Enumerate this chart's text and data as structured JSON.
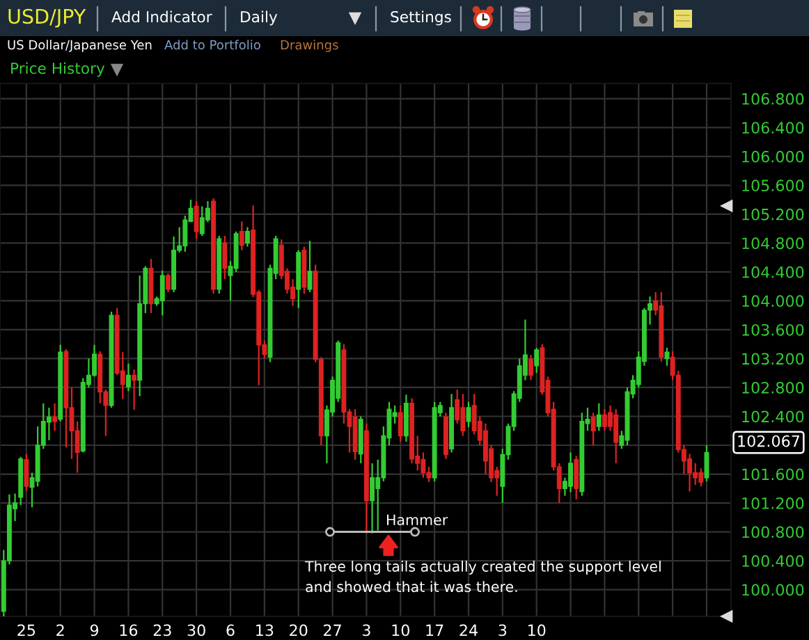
{
  "chart_data": {
    "type": "candlestick",
    "title": "USD/JPY",
    "subtitle": "US Dollar/Japanese Yen",
    "categories": [
      null,
      null,
      null,
      null,
      "25",
      null,
      null,
      null,
      null,
      null,
      "2",
      null,
      null,
      null,
      null,
      null,
      "9",
      null,
      null,
      null,
      null,
      null,
      "16",
      null,
      null,
      null,
      null,
      null,
      "23",
      null,
      null,
      null,
      null,
      null,
      "30",
      null,
      null,
      null,
      null,
      null,
      "6",
      null,
      null,
      null,
      null,
      null,
      "13",
      null,
      null,
      null,
      null,
      null,
      "20",
      null,
      null,
      null,
      null,
      null,
      "27",
      null,
      null,
      null,
      null,
      null,
      "3",
      null,
      null,
      null,
      null,
      null,
      "10",
      null,
      null,
      null,
      null,
      null,
      "17",
      null,
      null,
      null,
      null,
      null,
      "24",
      null,
      null,
      null,
      null,
      null,
      "3",
      null,
      null,
      null,
      null,
      null,
      "10",
      null,
      null,
      null,
      null,
      null,
      null,
      null,
      null,
      null,
      null,
      null,
      null,
      null,
      null,
      null,
      null,
      null,
      null,
      null,
      null,
      null,
      null,
      null,
      null,
      null,
      null,
      null,
      null,
      null,
      null
    ],
    "ohlc": [
      [
        99.7,
        100.55,
        99.6,
        100.4
      ],
      [
        100.4,
        101.32,
        100.35,
        101.17
      ],
      [
        101.12,
        101.33,
        100.95,
        101.2
      ],
      [
        101.28,
        101.84,
        101.17,
        101.81
      ],
      [
        101.8,
        101.88,
        101.37,
        101.43
      ],
      [
        101.42,
        101.62,
        101.14,
        101.55
      ],
      [
        101.5,
        102.26,
        101.43,
        102.0
      ],
      [
        102.0,
        102.58,
        101.95,
        102.33
      ],
      [
        102.32,
        102.52,
        102.07,
        102.39
      ],
      [
        102.39,
        102.58,
        102.2,
        102.33
      ],
      [
        102.36,
        103.39,
        102.33,
        103.29
      ],
      [
        103.3,
        103.33,
        101.97,
        102.52
      ],
      [
        102.52,
        102.8,
        101.81,
        102.2
      ],
      [
        102.2,
        102.33,
        101.62,
        101.9
      ],
      [
        101.92,
        102.93,
        101.9,
        102.87
      ],
      [
        102.84,
        103.2,
        102.8,
        102.97
      ],
      [
        102.97,
        103.39,
        102.95,
        103.26
      ],
      [
        103.26,
        103.3,
        102.58,
        102.74
      ],
      [
        102.74,
        102.77,
        102.13,
        102.55
      ],
      [
        102.55,
        103.85,
        102.52,
        103.8
      ],
      [
        103.8,
        103.9,
        102.97,
        103.0
      ],
      [
        103.03,
        103.29,
        102.64,
        102.84
      ],
      [
        102.81,
        103.13,
        102.75,
        102.97
      ],
      [
        102.97,
        103.05,
        102.49,
        102.9
      ],
      [
        102.9,
        104.35,
        102.68,
        103.96
      ],
      [
        103.96,
        104.48,
        103.83,
        104.45
      ],
      [
        104.45,
        104.58,
        103.83,
        103.96
      ],
      [
        103.96,
        104.06,
        103.93,
        104.03
      ],
      [
        104.0,
        104.42,
        103.8,
        104.35
      ],
      [
        104.35,
        104.38,
        104.12,
        104.16
      ],
      [
        104.16,
        104.89,
        104.12,
        104.7
      ],
      [
        104.7,
        105.02,
        104.67,
        104.76
      ],
      [
        104.76,
        105.18,
        104.68,
        105.12
      ],
      [
        105.1,
        105.4,
        105.09,
        105.28
      ],
      [
        105.31,
        105.38,
        104.86,
        104.96
      ],
      [
        104.93,
        105.31,
        104.9,
        105.15
      ],
      [
        105.12,
        105.38,
        105.09,
        105.28
      ],
      [
        105.38,
        105.42,
        104.1,
        104.16
      ],
      [
        104.16,
        104.9,
        104.1,
        104.86
      ],
      [
        104.8,
        104.9,
        104.3,
        104.45
      ],
      [
        104.35,
        104.55,
        104.0,
        104.48
      ],
      [
        104.45,
        104.96,
        104.4,
        104.93
      ],
      [
        104.96,
        105.1,
        104.7,
        104.77
      ],
      [
        104.8,
        105.02,
        104.75,
        104.96
      ],
      [
        104.98,
        105.32,
        104.05,
        104.09
      ],
      [
        104.12,
        104.15,
        102.83,
        103.39
      ],
      [
        103.39,
        103.45,
        103.2,
        103.26
      ],
      [
        103.22,
        104.5,
        103.15,
        104.45
      ],
      [
        104.38,
        104.9,
        104.3,
        104.86
      ],
      [
        104.77,
        104.85,
        104.3,
        104.35
      ],
      [
        104.41,
        104.45,
        104.1,
        104.16
      ],
      [
        104.19,
        104.3,
        103.93,
        104.03
      ],
      [
        104.16,
        104.7,
        103.9,
        104.67
      ],
      [
        104.7,
        104.75,
        104.1,
        104.19
      ],
      [
        104.16,
        104.83,
        104.12,
        104.41
      ],
      [
        104.41,
        104.5,
        103.15,
        103.19
      ],
      [
        103.19,
        103.22,
        102.0,
        102.13
      ],
      [
        102.13,
        102.55,
        101.75,
        102.49
      ],
      [
        102.46,
        102.95,
        102.4,
        102.9
      ],
      [
        102.65,
        103.45,
        102.6,
        103.42
      ],
      [
        103.32,
        103.4,
        102.3,
        102.46
      ],
      [
        102.46,
        102.5,
        101.9,
        102.26
      ],
      [
        102.39,
        102.5,
        101.8,
        101.91
      ],
      [
        101.88,
        102.4,
        101.75,
        102.36
      ],
      [
        102.2,
        102.3,
        100.78,
        101.23
      ],
      [
        101.23,
        101.75,
        100.78,
        101.55
      ],
      [
        101.4,
        101.8,
        100.82,
        101.55
      ],
      [
        101.55,
        102.26,
        101.5,
        102.13
      ],
      [
        102.1,
        102.6,
        102.0,
        102.5
      ],
      [
        102.4,
        102.55,
        102.3,
        102.45
      ],
      [
        102.45,
        102.55,
        102.05,
        102.13
      ],
      [
        102.13,
        102.7,
        102.05,
        102.58
      ],
      [
        102.58,
        102.65,
        101.75,
        101.81
      ],
      [
        101.85,
        102.13,
        101.65,
        101.75
      ],
      [
        101.8,
        101.9,
        101.55,
        101.62
      ],
      [
        101.62,
        101.7,
        101.49,
        101.55
      ],
      [
        101.55,
        102.6,
        101.5,
        102.52
      ],
      [
        102.45,
        102.6,
        102.4,
        102.55
      ],
      [
        102.39,
        102.45,
        101.81,
        101.87
      ],
      [
        101.95,
        102.71,
        101.9,
        102.52
      ],
      [
        102.63,
        102.77,
        102.3,
        102.35
      ],
      [
        102.52,
        102.71,
        102.13,
        102.2
      ],
      [
        102.33,
        102.6,
        102.25,
        102.52
      ],
      [
        102.55,
        102.71,
        102.15,
        102.2
      ],
      [
        102.33,
        102.4,
        102.0,
        102.07
      ],
      [
        102.2,
        102.3,
        101.6,
        101.78
      ],
      [
        101.95,
        102.0,
        101.49,
        101.55
      ],
      [
        101.65,
        101.7,
        101.3,
        101.55
      ],
      [
        101.43,
        101.95,
        101.2,
        101.87
      ],
      [
        101.87,
        102.3,
        101.8,
        102.26
      ],
      [
        102.26,
        102.75,
        102.2,
        102.71
      ],
      [
        102.65,
        103.2,
        102.6,
        103.1
      ],
      [
        102.97,
        103.74,
        102.9,
        103.25
      ],
      [
        103.19,
        103.25,
        102.9,
        102.97
      ],
      [
        103.1,
        103.35,
        103.0,
        103.32
      ],
      [
        103.35,
        103.4,
        102.7,
        102.74
      ],
      [
        102.9,
        102.95,
        102.4,
        102.45
      ],
      [
        102.5,
        102.6,
        101.65,
        101.7
      ],
      [
        101.7,
        101.75,
        101.2,
        101.4
      ],
      [
        101.4,
        101.55,
        101.3,
        101.5
      ],
      [
        101.43,
        101.9,
        101.35,
        101.75
      ],
      [
        101.8,
        101.85,
        101.25,
        101.4
      ],
      [
        101.36,
        102.45,
        101.3,
        102.33
      ],
      [
        102.3,
        102.52,
        102.2,
        102.36
      ],
      [
        102.39,
        102.45,
        102.0,
        102.2
      ],
      [
        102.26,
        102.58,
        102.2,
        102.42
      ],
      [
        102.42,
        102.5,
        102.2,
        102.26
      ],
      [
        102.45,
        102.55,
        102.2,
        102.26
      ],
      [
        102.42,
        102.5,
        101.75,
        102.04
      ],
      [
        102.0,
        102.2,
        101.95,
        102.13
      ],
      [
        102.07,
        102.8,
        102.0,
        102.74
      ],
      [
        102.71,
        102.97,
        102.65,
        102.9
      ],
      [
        102.84,
        103.3,
        102.8,
        103.22
      ],
      [
        103.16,
        103.9,
        103.1,
        103.87
      ],
      [
        103.87,
        104.06,
        103.67,
        103.96
      ],
      [
        104.0,
        104.12,
        103.8,
        103.87
      ],
      [
        103.93,
        104.12,
        103.16,
        103.22
      ],
      [
        103.2,
        103.35,
        103.1,
        103.29
      ],
      [
        103.22,
        103.3,
        102.9,
        102.97
      ],
      [
        102.97,
        103.03,
        101.9,
        101.94
      ],
      [
        101.94,
        102.0,
        101.6,
        101.78
      ],
      [
        101.81,
        101.88,
        101.36,
        101.62
      ],
      [
        101.62,
        101.75,
        101.45,
        101.55
      ],
      [
        101.62,
        101.68,
        101.43,
        101.49
      ],
      [
        101.55,
        102.0,
        101.5,
        101.9
      ]
    ],
    "colors": [
      "#33cc33",
      "#33cc33",
      "#33cc33",
      "#33cc33",
      "#dd2222",
      "#33cc33",
      "#33cc33",
      "#33cc33",
      "#33cc33",
      "#dd2222",
      "#33cc33",
      "#dd2222",
      "#dd2222",
      "#dd2222",
      "#33cc33",
      "#33cc33",
      "#33cc33",
      "#dd2222",
      "#dd2222",
      "#33cc33",
      "#dd2222",
      "#dd2222",
      "#33cc33",
      "#dd2222",
      "#33cc33",
      "#33cc33",
      "#dd2222",
      "#33cc33",
      "#33cc33",
      "#dd2222",
      "#33cc33",
      "#33cc33",
      "#33cc33",
      "#33cc33",
      "#dd2222",
      "#33cc33",
      "#33cc33",
      "#dd2222",
      "#33cc33",
      "#dd2222",
      "#33cc33",
      "#33cc33",
      "#dd2222",
      "#33cc33",
      "#dd2222",
      "#dd2222",
      "#dd2222",
      "#33cc33",
      "#33cc33",
      "#dd2222",
      "#dd2222",
      "#dd2222",
      "#33cc33",
      "#dd2222",
      "#33cc33",
      "#dd2222",
      "#dd2222",
      "#33cc33",
      "#33cc33",
      "#33cc33",
      "#dd2222",
      "#dd2222",
      "#dd2222",
      "#33cc33",
      "#dd2222",
      "#33cc33",
      "#33cc33",
      "#33cc33",
      "#33cc33",
      "#33cc33",
      "#dd2222",
      "#33cc33",
      "#dd2222",
      "#dd2222",
      "#dd2222",
      "#dd2222",
      "#33cc33",
      "#33cc33",
      "#dd2222",
      "#33cc33",
      "#dd2222",
      "#dd2222",
      "#33cc33",
      "#dd2222",
      "#dd2222",
      "#dd2222",
      "#dd2222",
      "#dd2222",
      "#33cc33",
      "#33cc33",
      "#33cc33",
      "#33cc33",
      "#33cc33",
      "#dd2222",
      "#33cc33",
      "#dd2222",
      "#dd2222",
      "#dd2222",
      "#dd2222",
      "#33cc33",
      "#33cc33",
      "#dd2222",
      "#33cc33",
      "#33cc33",
      "#dd2222",
      "#33cc33",
      "#dd2222",
      "#dd2222",
      "#dd2222",
      "#33cc33",
      "#33cc33",
      "#33cc33",
      "#33cc33",
      "#33cc33",
      "#33cc33",
      "#dd2222",
      "#dd2222",
      "#33cc33",
      "#dd2222",
      "#dd2222",
      "#dd2222",
      "#dd2222",
      "#dd2222",
      "#dd2222",
      "#33cc33"
    ],
    "ylim": [
      99.63,
      107.01
    ],
    "yticks": [
      {
        "value": 100.0,
        "label": "100.000"
      },
      {
        "value": 100.4,
        "label": "100.400"
      },
      {
        "value": 100.8,
        "label": "100.800"
      },
      {
        "value": 101.2,
        "label": "101.200"
      },
      {
        "value": 101.6,
        "label": "101.600"
      },
      {
        "value": 102.0,
        "label": null
      },
      {
        "value": 102.4,
        "label": "102.400"
      },
      {
        "value": 102.8,
        "label": "102.800"
      },
      {
        "value": 103.2,
        "label": "103.200"
      },
      {
        "value": 103.6,
        "label": "103.600"
      },
      {
        "value": 104.0,
        "label": "104.000"
      },
      {
        "value": 104.4,
        "label": "104.400"
      },
      {
        "value": 104.8,
        "label": "104.800"
      },
      {
        "value": 105.2,
        "label": "105.200"
      },
      {
        "value": 105.6,
        "label": "105.600"
      },
      {
        "value": 106.0,
        "label": "106.000"
      },
      {
        "value": 106.4,
        "label": "106.400"
      },
      {
        "value": 106.8,
        "label": "106.800"
      }
    ],
    "grid": true,
    "annotations": [
      "Add Indicator",
      "Daily",
      "Settings",
      "Add to Portfolio",
      "Drawings",
      "Price History",
      {
        "text": "Hammer",
        "y": 100.8
      },
      "Three long tails actually created the support level\nand showed that it was there.",
      "102.067"
    ]
  }
}
